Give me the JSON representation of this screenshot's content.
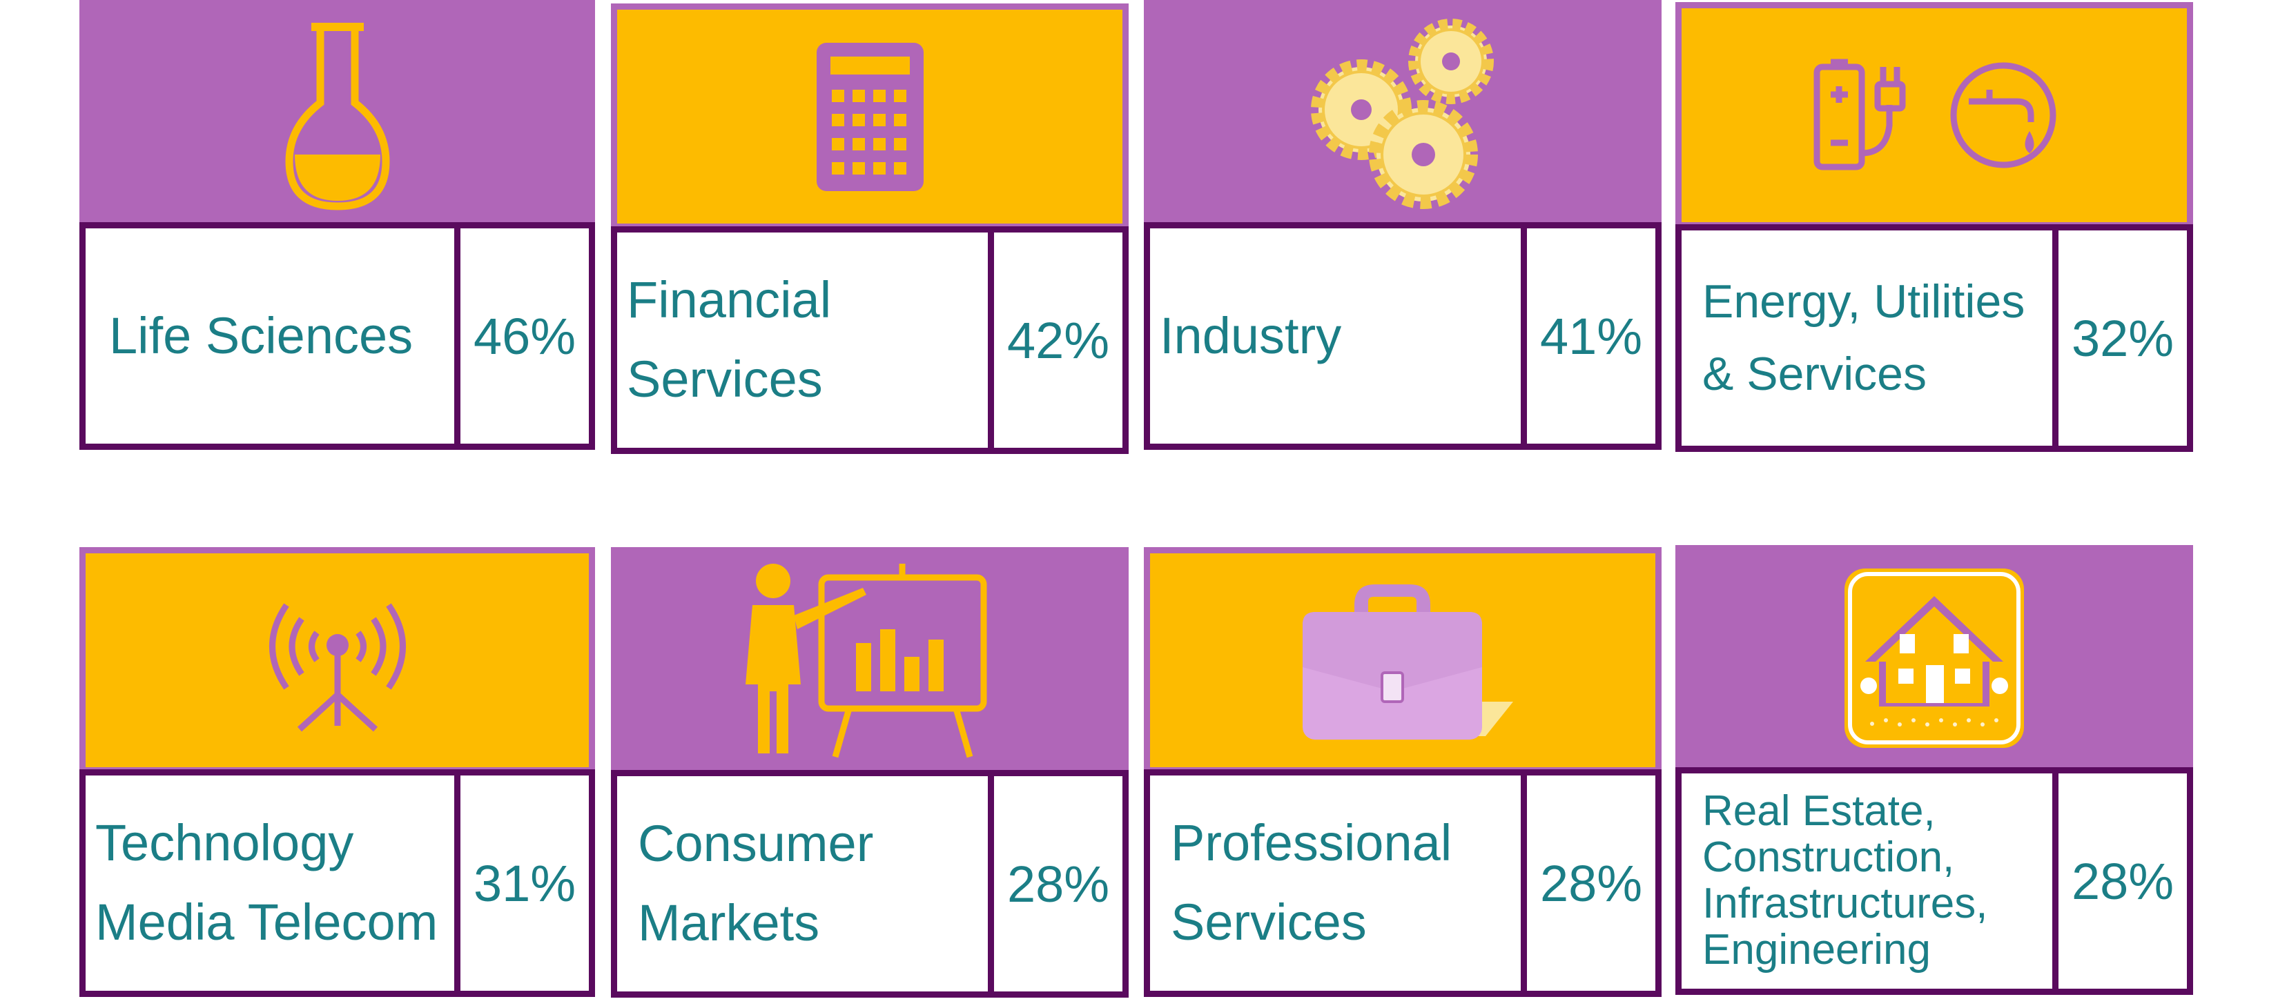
{
  "colors": {
    "purple": "#b066b8",
    "yellow": "#fdbb00",
    "border": "#5a0a5e",
    "teal": "#1b7e86"
  },
  "sectors": [
    {
      "label_lines": [
        "Life Sciences"
      ],
      "value": "46%",
      "icon": "flask-icon",
      "banner": "purple"
    },
    {
      "label_lines": [
        "Financial",
        "Services"
      ],
      "value": "42%",
      "icon": "calculator-icon",
      "banner": "yellow"
    },
    {
      "label_lines": [
        "Industry"
      ],
      "value": "41%",
      "icon": "gears-icon",
      "banner": "purple"
    },
    {
      "label_lines": [
        "Energy, Utilities",
        "& Services"
      ],
      "value": "32%",
      "icon": "battery-plug-water-icon",
      "banner": "yellow"
    },
    {
      "label_lines": [
        "Technology",
        "Media Telecom"
      ],
      "value": "31%",
      "icon": "antenna-icon",
      "banner": "yellow"
    },
    {
      "label_lines": [
        "Consumer",
        "Markets"
      ],
      "value": "28%",
      "icon": "presentation-icon",
      "banner": "purple"
    },
    {
      "label_lines": [
        "Professional",
        "Services"
      ],
      "value": "28%",
      "icon": "briefcase-icon",
      "banner": "yellow"
    },
    {
      "label_lines": [
        "Real Estate,",
        "Construction,",
        "Infrastructures,",
        "Engineering"
      ],
      "value": "28%",
      "icon": "house-icon",
      "banner": "purple"
    }
  ]
}
